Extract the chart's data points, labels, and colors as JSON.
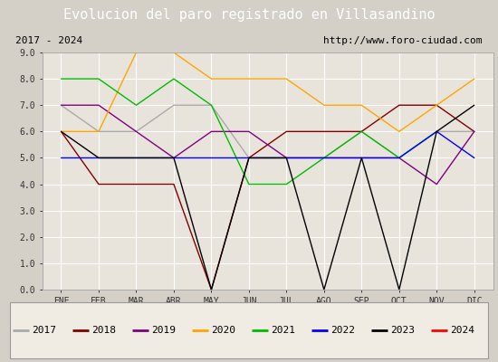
{
  "title": "Evolucion del paro registrado en Villasandino",
  "subtitle_left": "2017 - 2024",
  "subtitle_right": "http://www.foro-ciudad.com",
  "months": [
    "ENE",
    "FEB",
    "MAR",
    "ABR",
    "MAY",
    "JUN",
    "JUL",
    "AGO",
    "SEP",
    "OCT",
    "NOV",
    "DIC"
  ],
  "series": {
    "2017": {
      "color": "#aaaaaa",
      "values": [
        7.0,
        6.0,
        6.0,
        7.0,
        7.0,
        5.0,
        5.0,
        5.0,
        6.0,
        5.0,
        6.0,
        6.0
      ]
    },
    "2018": {
      "color": "#800000",
      "values": [
        6.0,
        4.0,
        4.0,
        4.0,
        0.0,
        5.0,
        6.0,
        6.0,
        6.0,
        7.0,
        7.0,
        6.0
      ]
    },
    "2019": {
      "color": "#800080",
      "values": [
        7.0,
        7.0,
        6.0,
        5.0,
        6.0,
        6.0,
        5.0,
        5.0,
        5.0,
        5.0,
        4.0,
        6.0
      ]
    },
    "2020": {
      "color": "#ffa500",
      "values": [
        6.0,
        6.0,
        9.0,
        9.0,
        8.0,
        8.0,
        8.0,
        7.0,
        7.0,
        6.0,
        7.0,
        8.0
      ]
    },
    "2021": {
      "color": "#00bb00",
      "values": [
        8.0,
        8.0,
        7.0,
        8.0,
        7.0,
        4.0,
        4.0,
        5.0,
        6.0,
        5.0,
        6.0,
        null
      ]
    },
    "2022": {
      "color": "#0000ff",
      "values": [
        5.0,
        5.0,
        5.0,
        5.0,
        5.0,
        5.0,
        5.0,
        5.0,
        5.0,
        5.0,
        6.0,
        5.0
      ]
    },
    "2023": {
      "color": "#000000",
      "values": [
        6.0,
        5.0,
        5.0,
        5.0,
        0.0,
        5.0,
        5.0,
        0.0,
        5.0,
        0.0,
        6.0,
        7.0
      ]
    },
    "2024": {
      "color": "#ff0000",
      "values": [
        6.0,
        null,
        null,
        null,
        null,
        null,
        null,
        null,
        null,
        null,
        null,
        null
      ]
    }
  },
  "ylim": [
    0.0,
    9.0
  ],
  "yticks": [
    0.0,
    1.0,
    2.0,
    3.0,
    4.0,
    5.0,
    6.0,
    7.0,
    8.0,
    9.0
  ],
  "background_color": "#d4d0c8",
  "plot_bg_color": "#e8e4dc",
  "title_bg_color": "#4a6fa5",
  "title_color": "#ffffff",
  "subtitle_bg_color": "#f0ece4",
  "legend_bg_color": "#f0ece4",
  "title_fontsize": 11,
  "tick_fontsize": 7,
  "legend_fontsize": 8,
  "grid_color": "#ffffff",
  "line_width": 1.0
}
